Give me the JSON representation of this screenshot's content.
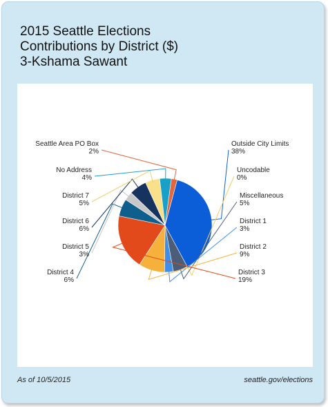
{
  "title_lines": [
    "2015 Seattle Elections",
    "Contributions by District ($)",
    "3-Kshama Sawant"
  ],
  "footer": {
    "date": "As of 10/5/2015",
    "source": "seattle.gov/elections"
  },
  "chart_data": {
    "type": "pie",
    "title": "2015 Seattle Elections Contributions by District ($) 3-Kshama Sawant",
    "start_angle_deg": -75,
    "slices": [
      {
        "label": "Outside City Limits",
        "value_label": "38%",
        "value": 38,
        "color": "#0b5ed7"
      },
      {
        "label": "Uncodable",
        "value_label": "0%",
        "value": 0,
        "color": "#f4d58a"
      },
      {
        "label": "Miscellaneous",
        "value_label": "5%",
        "value": 5,
        "color": "#4b5d78"
      },
      {
        "label": "District 1",
        "value_label": "3%",
        "value": 3,
        "color": "#3f8fe8"
      },
      {
        "label": "District 2",
        "value_label": "9%",
        "value": 9,
        "color": "#f6b13c"
      },
      {
        "label": "District 3",
        "value_label": "19%",
        "value": 19,
        "color": "#e2491b"
      },
      {
        "label": "District 4",
        "value_label": "6%",
        "value": 6,
        "color": "#0f5f8c"
      },
      {
        "label": "District 5",
        "value_label": "3%",
        "value": 3,
        "color": "#c8c8c8"
      },
      {
        "label": "District 6",
        "value_label": "6%",
        "value": 6,
        "color": "#16325f"
      },
      {
        "label": "District 7",
        "value_label": "5%",
        "value": 5,
        "color": "#f9e08a"
      },
      {
        "label": "No Address",
        "value_label": "4%",
        "value": 4,
        "color": "#19a0c8"
      },
      {
        "label": "Seattle Area PO Box",
        "value_label": "2%",
        "value": 2,
        "color": "#e0673e"
      }
    ]
  }
}
